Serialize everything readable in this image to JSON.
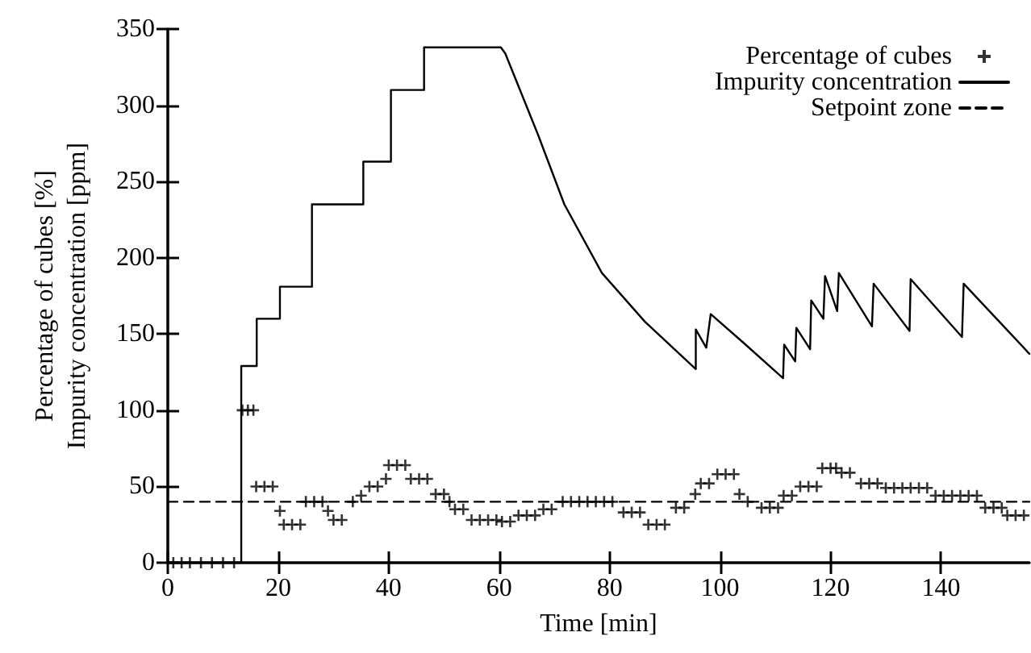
{
  "chart_data": {
    "type": "line",
    "xlabel": "Time [min]",
    "ylabel": "Percentage of cubes [%]\nImpurity concentration [ppm]",
    "xlim": [
      0,
      156
    ],
    "xticks": [
      0,
      20,
      40,
      60,
      80,
      100,
      120,
      140
    ],
    "ylim": [
      0,
      350
    ],
    "yticks": [
      0,
      50,
      100,
      150,
      200,
      250,
      300,
      350
    ],
    "grid": false,
    "legend": "top right",
    "series": [
      {
        "name": "Percentage of cubes",
        "type": "scatter",
        "marker": "cross",
        "color": "#000000",
        "x": [
          1,
          2.5,
          4,
          6,
          8,
          10,
          12,
          13.5,
          14.5,
          15.5,
          16,
          17.5,
          19,
          20.3,
          21,
          22.5,
          24,
          25,
          26.5,
          28,
          29,
          30,
          31.5,
          33.5,
          35,
          36.5,
          38,
          39.5,
          40,
          41.5,
          43,
          44,
          45.5,
          47,
          48.5,
          50,
          51,
          52,
          53.5,
          55,
          56.5,
          58,
          59.5,
          60.5,
          62,
          63.5,
          65,
          66.5,
          68,
          69.5,
          71.5,
          73,
          74.5,
          76,
          77.5,
          79,
          80.5,
          82.5,
          84,
          85.5,
          87,
          88.5,
          90,
          92,
          93.5,
          95.5,
          96.5,
          98,
          99.5,
          101,
          102.5,
          103.5,
          105,
          107.5,
          109,
          110.5,
          111.5,
          113,
          114.5,
          116,
          117.5,
          118.5,
          120,
          121,
          122,
          123.5,
          125.5,
          127,
          128.5,
          130,
          131.5,
          133,
          134.5,
          136,
          137.5,
          139,
          140.5,
          142,
          143.5,
          145,
          146.5,
          148,
          149.5,
          151,
          152,
          153.5,
          155
        ],
        "values": [
          0,
          0,
          0,
          0,
          0,
          0,
          0,
          100,
          100,
          100,
          50,
          50,
          50,
          34,
          25,
          25,
          25,
          40,
          40,
          40,
          34,
          28,
          28,
          40,
          44,
          50,
          50,
          55,
          64,
          64,
          64,
          55,
          55,
          55,
          45,
          45,
          40,
          35,
          35,
          28,
          28,
          28,
          28,
          27,
          27,
          31,
          31,
          31,
          35,
          35,
          40,
          40,
          40,
          40,
          40,
          40,
          40,
          33,
          33,
          33,
          25,
          25,
          25,
          36,
          36,
          45,
          52,
          52,
          58,
          58,
          58,
          45,
          40,
          36,
          36,
          36,
          44,
          44,
          50,
          50,
          50,
          62,
          62,
          62,
          59,
          59,
          52,
          52,
          52,
          49,
          49,
          49,
          49,
          49,
          49,
          44,
          44,
          44,
          44,
          44,
          44,
          36,
          36,
          36,
          31,
          31,
          31
        ]
      },
      {
        "name": "Impurity concentration",
        "line_style": "solid",
        "color": "#000000",
        "x": [
          0,
          13.3,
          13.3,
          16.1,
          16.1,
          20.3,
          20.3,
          26.1,
          26.1,
          35.4,
          35.4,
          40.4,
          40.4,
          46.4,
          46.4,
          60.3,
          61.1,
          67,
          71.8,
          78.6,
          86.4,
          95.6,
          95.6,
          97.5,
          98.3,
          104,
          111.4,
          111.6,
          113.6,
          113.8,
          116.3,
          116.5,
          118.7,
          119,
          121.2,
          121.5,
          127.5,
          127.8,
          134.3,
          134.5,
          143.8,
          144.1,
          156
        ],
        "values": [
          0,
          0,
          129,
          129,
          160,
          160,
          181,
          181,
          235,
          235,
          263,
          263,
          310,
          310,
          338,
          338,
          334,
          281,
          235,
          190,
          158,
          127,
          153,
          141,
          163,
          145,
          121,
          143,
          132,
          154,
          140,
          172,
          160,
          188,
          165,
          190,
          155,
          183,
          152,
          186,
          148,
          183,
          137
        ]
      },
      {
        "name": "Setpoint zone",
        "line_style": "dashed",
        "color": "#000000",
        "x": [
          0,
          156
        ],
        "values": [
          40,
          40
        ]
      }
    ]
  }
}
